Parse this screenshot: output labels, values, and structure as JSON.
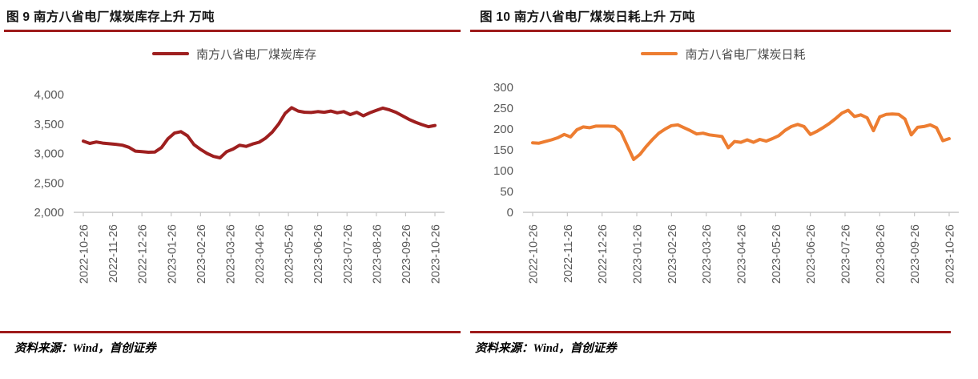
{
  "accent_red": "#9E1B1B",
  "axis_color": "#C6C6C6",
  "label_color": "#595959",
  "chart_data": [
    {
      "type": "line",
      "title": "图 9 南方八省电厂煤炭库存上升 万吨",
      "legend": "南方八省电厂煤炭库存",
      "line_color": "#9E1F1F",
      "source_note": "资料来源：Wind，首创证券",
      "x_tick_labels": [
        "2022-10-26",
        "2022-11-26",
        "2022-12-26",
        "2023-01-26",
        "2023-02-26",
        "2023-03-26",
        "2023-04-26",
        "2023-05-26",
        "2023-06-26",
        "2023-07-26",
        "2023-08-26",
        "2023-09-26",
        "2023-10-26"
      ],
      "ylim": [
        2000,
        4000
      ],
      "y_ticks": [
        4000,
        3500,
        3000,
        2500,
        2000
      ],
      "grid": false,
      "legend_position": "top-center",
      "values": [
        3210,
        3170,
        3195,
        3175,
        3165,
        3155,
        3140,
        3105,
        3040,
        3030,
        3020,
        3025,
        3100,
        3250,
        3345,
        3370,
        3300,
        3150,
        3070,
        3000,
        2950,
        2925,
        3030,
        3075,
        3140,
        3120,
        3160,
        3190,
        3260,
        3360,
        3500,
        3680,
        3777,
        3720,
        3700,
        3695,
        3710,
        3700,
        3720,
        3690,
        3710,
        3660,
        3700,
        3640,
        3690,
        3730,
        3770,
        3740,
        3700,
        3640,
        3580,
        3530,
        3490,
        3455,
        3475
      ]
    },
    {
      "type": "line",
      "title": "图 10 南方八省电厂煤炭日耗上升 万吨",
      "legend": "南方八省电厂煤炭日耗",
      "line_color": "#ED7D31",
      "source_note": "资料来源：Wind，首创证券",
      "x_tick_labels": [
        "2022-10-26",
        "2022-11-26",
        "2022-12-26",
        "2023-01-26",
        "2023-02-26",
        "2023-03-26",
        "2023-04-26",
        "2023-05-26",
        "2023-06-26",
        "2023-07-26",
        "2023-08-26",
        "2023-09-26",
        "2023-10-26"
      ],
      "ylim": [
        0,
        300
      ],
      "y_ticks": [
        300,
        250,
        200,
        150,
        100,
        50,
        0
      ],
      "grid": false,
      "legend_position": "top-center",
      "values": [
        167,
        166,
        170,
        174,
        179,
        187,
        181,
        198,
        205,
        203,
        207,
        207,
        207,
        206,
        193,
        160,
        127,
        139,
        158,
        175,
        190,
        200,
        208,
        210,
        203,
        196,
        188,
        190,
        186,
        184,
        182,
        155,
        170,
        168,
        174,
        168,
        175,
        171,
        177,
        184,
        197,
        206,
        211,
        206,
        187,
        194,
        203,
        213,
        225,
        238,
        245,
        230,
        234,
        227,
        196,
        229,
        235,
        236,
        235,
        224,
        186,
        204,
        206,
        210,
        203,
        172,
        177
      ]
    }
  ]
}
